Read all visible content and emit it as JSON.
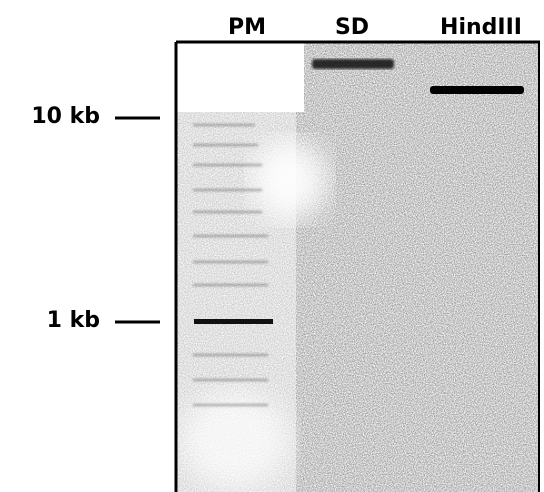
{
  "lane_labels": [
    "PM",
    "SD",
    "HindIII"
  ],
  "size_markers": [
    "10 kb",
    "1 kb"
  ]
}
